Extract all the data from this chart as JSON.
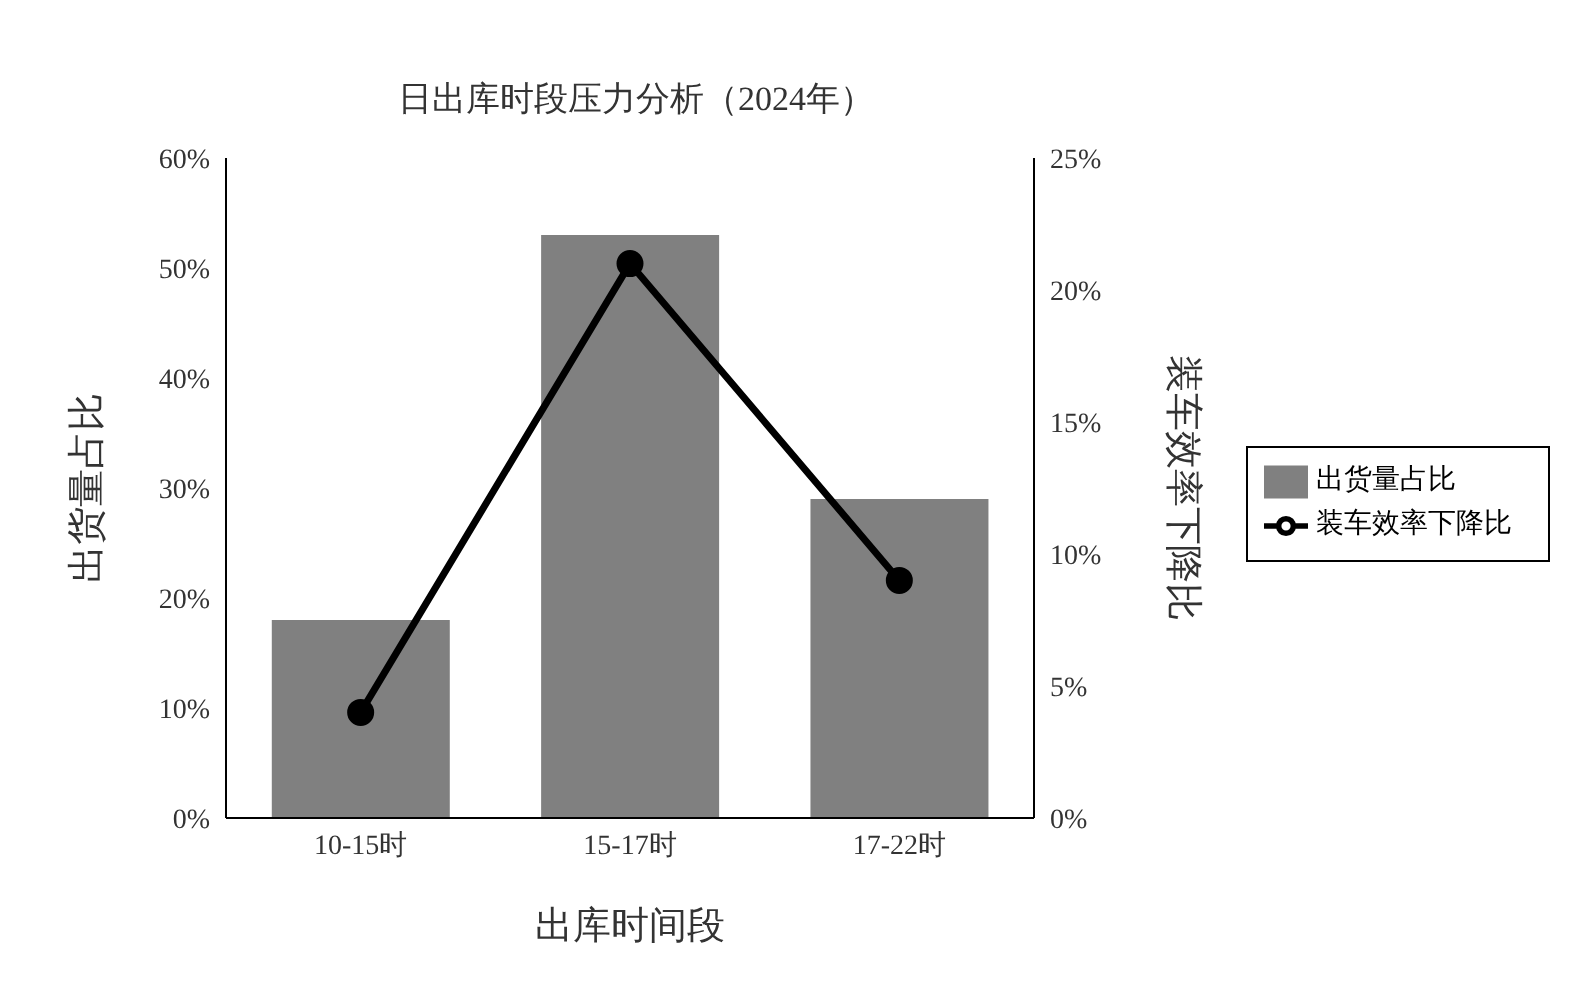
{
  "chart_data": {
    "type": "bar",
    "title": "日出库时段压力分析（2024年）",
    "xlabel": "出库时间段",
    "ylabel": "出货量占比",
    "y2label": "装车效率下降比",
    "categories": [
      "10-15时",
      "15-17时",
      "17-22时"
    ],
    "series": [
      {
        "name": "出货量占比",
        "color": "#808080",
        "values": [
          18,
          53,
          29
        ]
      },
      {
        "name": "装车效率下降比",
        "type": "line",
        "axis": "y2",
        "color": "#000000",
        "values": [
          4,
          21,
          9
        ],
        "marker": "circle",
        "line_style": "solid"
      }
    ],
    "ylim": [
      0,
      60
    ],
    "yticks": [
      {
        "value": 0,
        "label": "0%"
      },
      {
        "value": 10,
        "label": "10%"
      },
      {
        "value": 20,
        "label": "20%"
      },
      {
        "value": 30,
        "label": "30%"
      },
      {
        "value": 40,
        "label": "40%"
      },
      {
        "value": 50,
        "label": "50%"
      },
      {
        "value": 60,
        "label": "60%"
      }
    ],
    "y2lim": [
      0,
      25
    ],
    "y2ticks": [
      {
        "value": 0,
        "label": "0%"
      },
      {
        "value": 5,
        "label": "5%"
      },
      {
        "value": 10,
        "label": "10%"
      },
      {
        "value": 15,
        "label": "15%"
      },
      {
        "value": 20,
        "label": "20%"
      },
      {
        "value": 25,
        "label": "25%"
      }
    ],
    "legend": "right"
  }
}
